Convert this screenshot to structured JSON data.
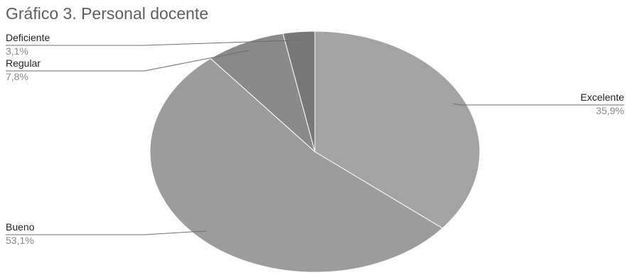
{
  "chart_data": {
    "type": "pie",
    "title": "Gráfico 3. Personal docente",
    "slices": [
      {
        "label": "Excelente",
        "value_label": "35,9%",
        "value": 35.9,
        "color": "#a3a3a3"
      },
      {
        "label": "Bueno",
        "value_label": "53,1%",
        "value": 53.1,
        "color": "#9c9c9c"
      },
      {
        "label": "Regular",
        "value_label": "7,8%",
        "value": 7.8,
        "color": "#8a8a8a"
      },
      {
        "label": "Deficiente",
        "value_label": "3,1%",
        "value": 3.1,
        "color": "#777777"
      }
    ],
    "legend": "none",
    "labels": "outside-with-leader-lines"
  }
}
